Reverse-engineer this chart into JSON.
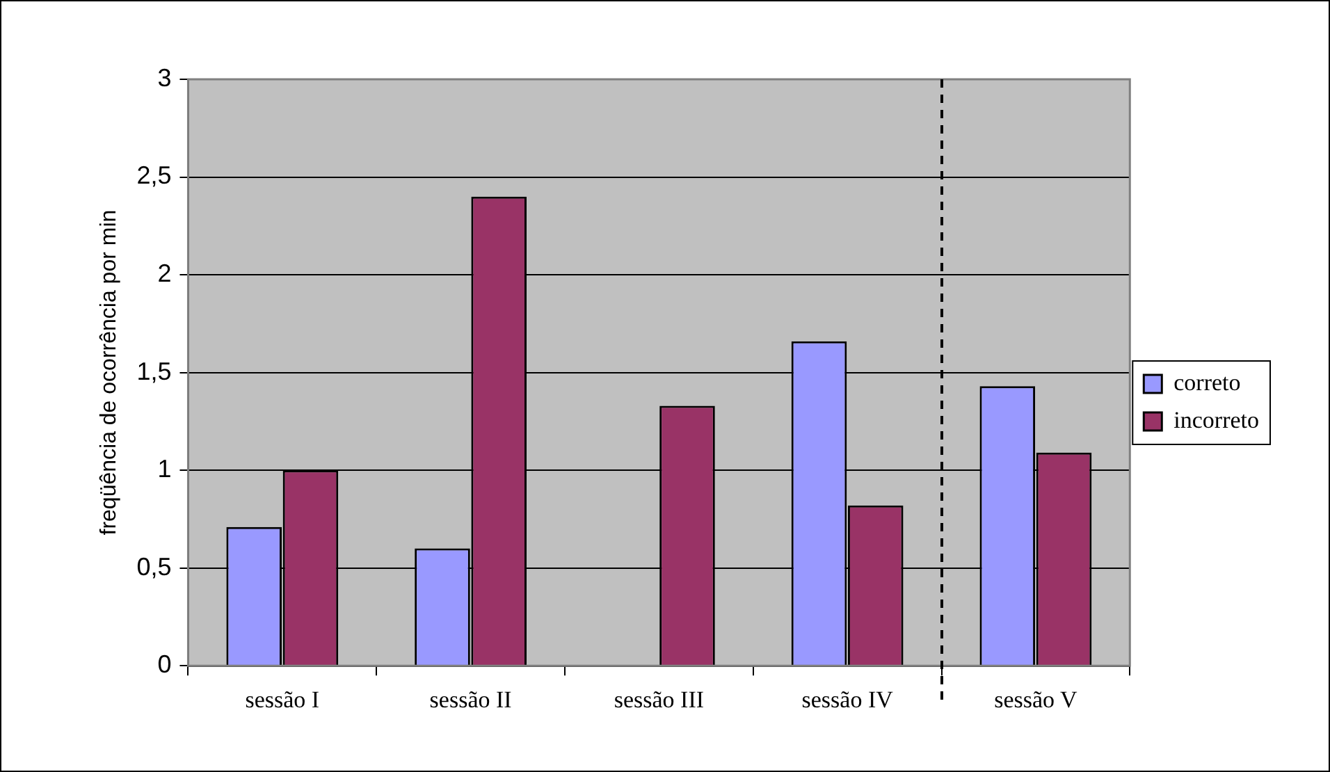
{
  "chart_data": {
    "type": "bar",
    "ylabel": "freqüência de ocorrência por min",
    "categories": [
      "sessão I",
      "sessão II",
      "sessão III",
      "sessão IV",
      "sessão V"
    ],
    "series": [
      {
        "name": "correto",
        "color": "#9999ff",
        "values": [
          0.71,
          0.6,
          0,
          1.66,
          1.43
        ]
      },
      {
        "name": "incorreto",
        "color": "#993366",
        "values": [
          1.0,
          2.4,
          1.33,
          0.82,
          1.09
        ]
      }
    ],
    "ylim": [
      0,
      3
    ],
    "yticks": [
      0,
      {
        "value": 0.5,
        "label": "0,5"
      },
      1,
      {
        "value": 1.5,
        "label": "1,5"
      },
      2,
      {
        "value": 2.5,
        "label": "2,5"
      },
      3
    ],
    "grid": "y",
    "legend": "right"
  }
}
